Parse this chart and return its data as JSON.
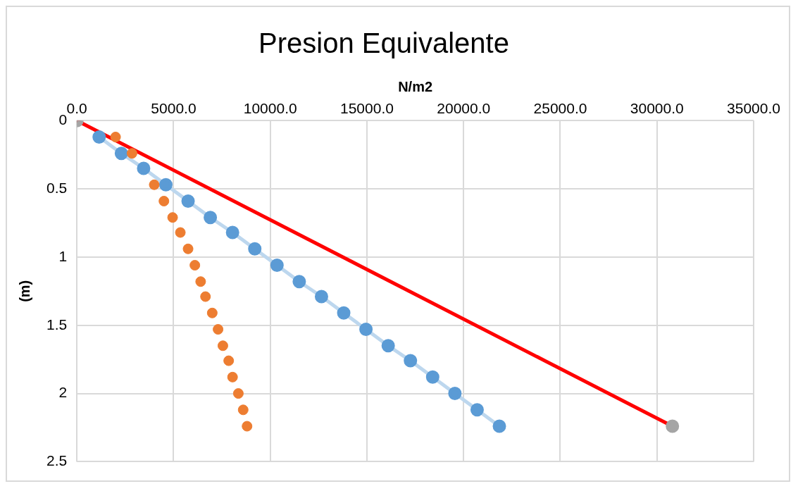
{
  "chart_data": {
    "type": "scatter",
    "title": "Presion Equivalente",
    "xlabel": "N/m2",
    "ylabel": "(m)",
    "xlim": [
      0,
      35000
    ],
    "xticks": [
      {
        "value": 0,
        "label": "0.0"
      },
      {
        "value": 5000,
        "label": "5000.0"
      },
      {
        "value": 10000,
        "label": "10000.0"
      },
      {
        "value": 15000,
        "label": "15000.0"
      },
      {
        "value": 20000,
        "label": "20000.0"
      },
      {
        "value": 25000,
        "label": "25000.0"
      },
      {
        "value": 30000,
        "label": "30000.0"
      },
      {
        "value": 35000,
        "label": "35000.0"
      }
    ],
    "ylim": [
      2.5,
      0
    ],
    "yticks": [
      0,
      0.5,
      1,
      1.5,
      2,
      2.5
    ],
    "grid": true,
    "legend": false,
    "marker": "circle",
    "series": [
      {
        "type": "line",
        "line_style": "solid",
        "color": "#bdd7ee",
        "colors": [
          "#5b9bd5",
          "#5b9bd5",
          "#5b9bd5",
          "#5b9bd5",
          "#5b9bd5",
          "#5b9bd5",
          "#5b9bd5",
          "#5b9bd5",
          "#5b9bd5",
          "#5b9bd5",
          "#5b9bd5",
          "#5b9bd5",
          "#5b9bd5",
          "#5b9bd5",
          "#5b9bd5",
          "#5b9bd5",
          "#5b9bd5",
          "#5b9bd5",
          "#5b9bd5"
        ],
        "x": [
          1150,
          2300,
          3450,
          4600,
          5750,
          6900,
          8050,
          9200,
          10350,
          11500,
          12650,
          13800,
          14950,
          16100,
          17250,
          18400,
          19550,
          20700,
          21850
        ],
        "values": [
          0.12,
          0.24,
          0.35,
          0.47,
          0.59,
          0.71,
          0.82,
          0.94,
          1.06,
          1.18,
          1.29,
          1.41,
          1.53,
          1.65,
          1.76,
          1.88,
          2.0,
          2.12,
          2.24
        ]
      },
      {
        "color": "#ed7d31",
        "x": [
          2000,
          2850,
          null,
          4000,
          4500,
          4950,
          5350,
          5750,
          6100,
          6400,
          6650,
          7000,
          7300,
          7550,
          7850,
          8050,
          8350,
          8600,
          8800
        ],
        "values": [
          0.12,
          0.24,
          null,
          0.47,
          0.59,
          0.71,
          0.82,
          0.94,
          1.06,
          1.18,
          1.29,
          1.41,
          1.53,
          1.65,
          1.76,
          1.88,
          2.0,
          2.12,
          2.24
        ]
      },
      {
        "type": "line",
        "line_style": "solid",
        "color": "#ff0000",
        "colors": [
          "#a5a5a5",
          "#a5a5a5"
        ],
        "x": [
          0,
          30800
        ],
        "values": [
          0,
          2.24
        ]
      }
    ]
  }
}
